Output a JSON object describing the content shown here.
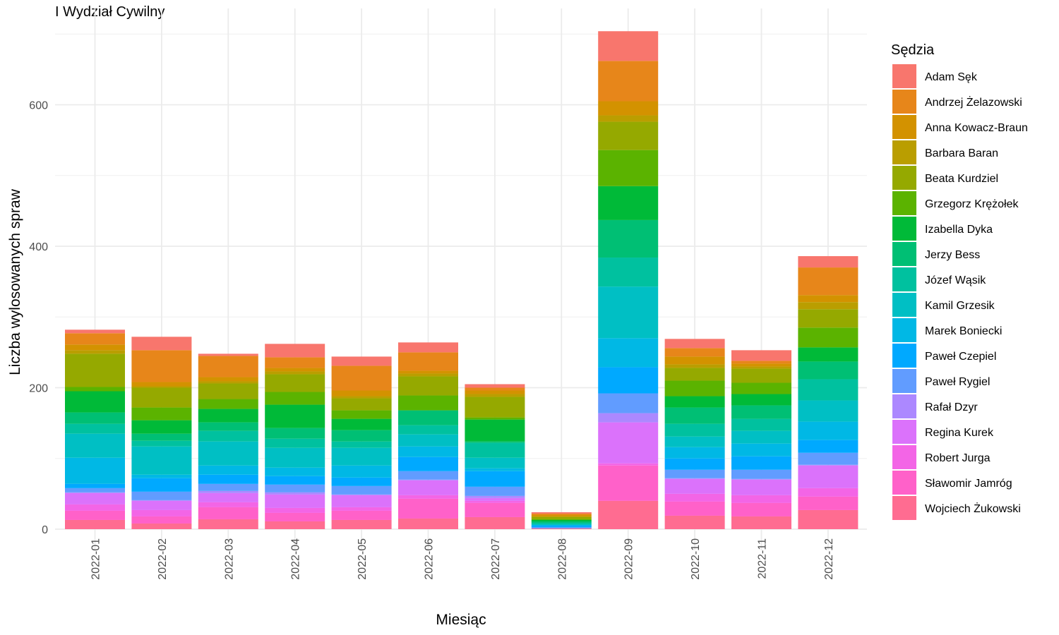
{
  "page_title": "I Wydział Cywilny",
  "chart_data": {
    "type": "bar",
    "stacked": true,
    "title": "I Wydział Cywilny",
    "xlabel": "Miesiąc",
    "ylabel": "Liczba wylosowanych spraw",
    "ylim": [
      -28,
      720
    ],
    "yticks": [
      0,
      200,
      400,
      600
    ],
    "grid": true,
    "legend_title": "Sędzia",
    "legend_position": "right",
    "categories": [
      "2022-01",
      "2022-02",
      "2022-03",
      "2022-04",
      "2022-05",
      "2022-06",
      "2022-07",
      "2022-08",
      "2022-09",
      "2022-10",
      "2022-11",
      "2022-12"
    ],
    "series": [
      {
        "name": "Adam Sęk",
        "color": "#F8766D",
        "values": [
          5,
          19,
          3,
          19,
          13,
          14,
          5,
          2,
          42,
          13,
          15,
          16
        ]
      },
      {
        "name": "Andrzej Żelazowski",
        "color": "#E7861A",
        "values": [
          16,
          45,
          30,
          15,
          35,
          26,
          4,
          2,
          57,
          12,
          4,
          39
        ]
      },
      {
        "name": "Anna Kowacz-Braun",
        "color": "#D39200",
        "values": [
          8,
          6,
          6,
          5,
          8,
          4,
          5,
          2,
          20,
          11,
          4,
          10
        ]
      },
      {
        "name": "Barbara Baran",
        "color": "#BA9E00",
        "values": [
          5,
          2,
          3,
          4,
          3,
          4,
          4,
          1,
          9,
          5,
          3,
          10
        ]
      },
      {
        "name": "Beata Kurdziel",
        "color": "#95A900",
        "values": [
          47,
          28,
          22,
          25,
          17,
          27,
          29,
          3,
          40,
          18,
          20,
          26
        ]
      },
      {
        "name": "Grzegorz Krężołek",
        "color": "#5BB300",
        "values": [
          6,
          18,
          14,
          18,
          12,
          21,
          3,
          1,
          51,
          22,
          16,
          28
        ]
      },
      {
        "name": "Izabella Dyka",
        "color": "#00BA38",
        "values": [
          30,
          19,
          19,
          33,
          16,
          0,
          31,
          2,
          48,
          16,
          16,
          20
        ]
      },
      {
        "name": "Jerzy Bess",
        "color": "#00BF74",
        "values": [
          16,
          10,
          12,
          15,
          16,
          21,
          2,
          2,
          53,
          23,
          19,
          25
        ]
      },
      {
        "name": "Józef Wąsik",
        "color": "#00C19F",
        "values": [
          14,
          8,
          15,
          13,
          9,
          13,
          21,
          2,
          41,
          18,
          17,
          30
        ]
      },
      {
        "name": "Kamil Grzesik",
        "color": "#00BFC4",
        "values": [
          34,
          40,
          34,
          28,
          25,
          17,
          15,
          1,
          73,
          15,
          18,
          30
        ]
      },
      {
        "name": "Marek Boniecki",
        "color": "#00B8E5",
        "values": [
          37,
          5,
          13,
          12,
          17,
          15,
          4,
          1,
          41,
          16,
          18,
          26
        ]
      },
      {
        "name": "Paweł Czepiel",
        "color": "#00A9FF",
        "values": [
          6,
          19,
          13,
          12,
          12,
          20,
          22,
          2,
          37,
          16,
          19,
          18
        ]
      },
      {
        "name": "Paweł Rygiel",
        "color": "#619CFF",
        "values": [
          6,
          12,
          10,
          11,
          12,
          12,
          13,
          2,
          28,
          12,
          13,
          17
        ]
      },
      {
        "name": "Rafał Dzyr",
        "color": "#AC88FF",
        "values": [
          1,
          1,
          3,
          3,
          1,
          1,
          3,
          0,
          13,
          1,
          1,
          1
        ]
      },
      {
        "name": "Regina Kurek",
        "color": "#DB72FB",
        "values": [
          16,
          13,
          13,
          19,
          17,
          21,
          4,
          0,
          58,
          21,
          22,
          32
        ]
      },
      {
        "name": "Robert Jurga",
        "color": "#F365E6",
        "values": [
          9,
          9,
          7,
          7,
          5,
          5,
          3,
          0,
          3,
          11,
          11,
          12
        ]
      },
      {
        "name": "Sławomir Jamróg",
        "color": "#FF61C9",
        "values": [
          13,
          10,
          17,
          12,
          13,
          28,
          20,
          0,
          50,
          20,
          19,
          19
        ]
      },
      {
        "name": "Wojciech Żukowski",
        "color": "#FF6C91",
        "values": [
          13,
          8,
          14,
          11,
          13,
          15,
          17,
          1,
          40,
          19,
          18,
          27
        ]
      }
    ]
  }
}
